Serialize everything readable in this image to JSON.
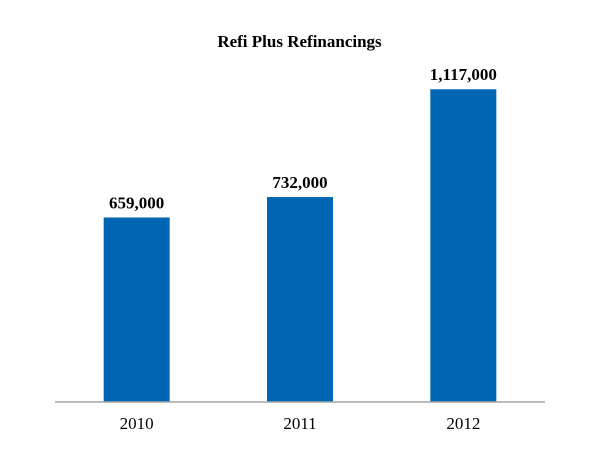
{
  "chart_data": {
    "type": "bar",
    "title": "Refi Plus Refinancings",
    "xlabel": "",
    "ylabel": "",
    "categories": [
      "2010",
      "2011",
      "2012"
    ],
    "values": [
      659000,
      732000,
      1117000
    ],
    "data_labels": [
      "659,000",
      "732,000",
      "1,117,000"
    ],
    "ylim": [
      0,
      1200000
    ],
    "grid": false,
    "legend": "none",
    "colors": {
      "bar": "#0066b3",
      "axis": "#a6a6a6",
      "text": "#000000",
      "background": "#ffffff"
    }
  }
}
